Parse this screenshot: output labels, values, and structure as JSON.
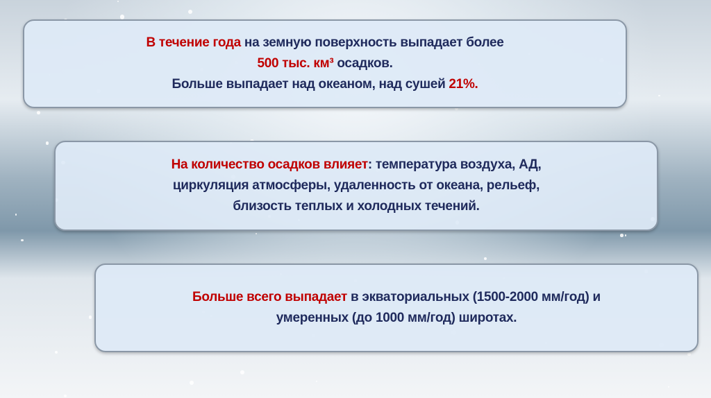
{
  "colors": {
    "accent": "#c00000",
    "text": "#1f2a5c"
  },
  "box1": {
    "l1_red": "В течение года",
    "l1_rest": " на земную поверхность выпадает более",
    "l2_red": "500 тыс. км³",
    "l2_rest": " осадков.",
    "l3_text": "Больше выпадает над океаном, над сушей ",
    "l3_red": "21%."
  },
  "box2": {
    "red": "На количество осадков влияет",
    "l1_rest": ": температура воздуха, АД,",
    "l2": "циркуляция атмосферы, удаленность от океана, рельеф,",
    "l3": "близость теплых и холодных течений."
  },
  "box3": {
    "red": "Больше всего выпадает",
    "l1_rest": " в экваториальных (1500-2000 мм/год) и",
    "l2": "умеренных (до 1000 мм/год) широтах."
  }
}
